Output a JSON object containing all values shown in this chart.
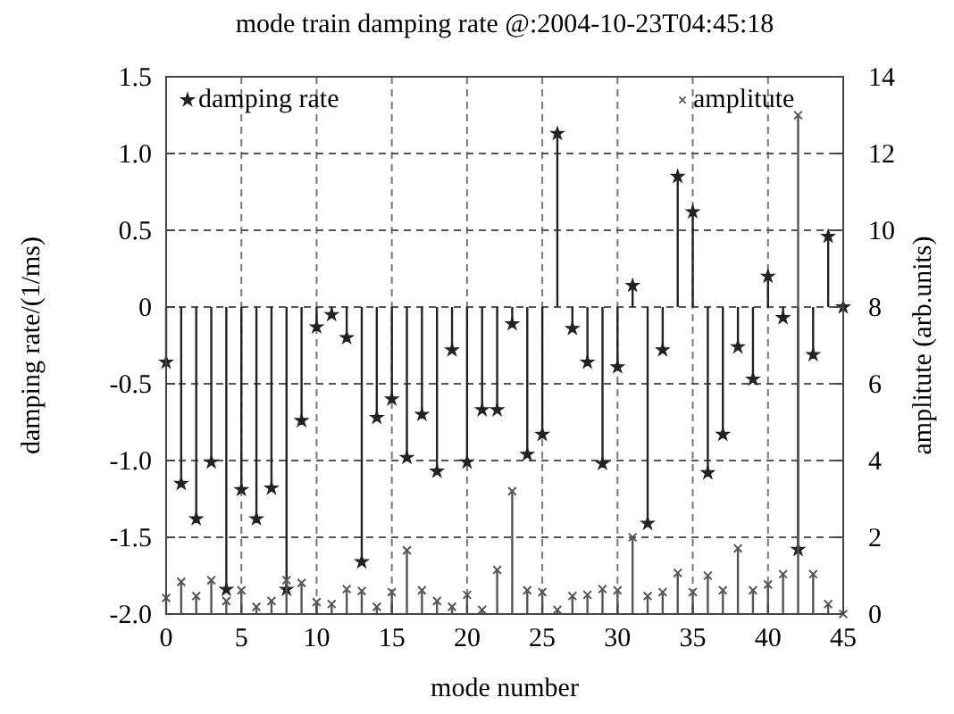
{
  "chart_data": {
    "type": "lollipop",
    "title": "mode train damping rate @:2004-10-23T04:45:18",
    "xlabel": "mode number",
    "ylabel": "damping rate/(1/ms)",
    "y2label": "amplitute (arb.units)",
    "x": [
      0,
      1,
      2,
      3,
      4,
      5,
      6,
      7,
      8,
      9,
      10,
      11,
      12,
      13,
      14,
      15,
      16,
      17,
      18,
      19,
      20,
      21,
      22,
      23,
      24,
      25,
      26,
      27,
      28,
      29,
      30,
      31,
      32,
      33,
      34,
      35,
      36,
      37,
      38,
      39,
      40,
      41,
      42,
      43,
      44,
      45
    ],
    "series": [
      {
        "name": "damping rate",
        "color": "#222222",
        "marker": "star",
        "values": [
          -0.36,
          -1.15,
          -1.38,
          -1.01,
          -1.84,
          -1.19,
          -1.38,
          -1.18,
          -1.84,
          -0.74,
          -0.13,
          -0.05,
          -0.2,
          -1.66,
          -0.72,
          -0.6,
          -0.98,
          -0.7,
          -1.07,
          -0.28,
          -1.01,
          -0.67,
          -0.67,
          -0.11,
          -0.96,
          -0.83,
          1.13,
          -0.14,
          -0.36,
          -1.02,
          -0.39,
          0.14,
          -1.41,
          -0.28,
          0.85,
          0.62,
          -1.08,
          -0.83,
          -0.26,
          -0.47,
          0.2,
          -0.07,
          -1.58,
          -0.31,
          0.46,
          0
        ]
      },
      {
        "name": "amplitute",
        "color": "#555555",
        "marker": "cross",
        "axis": "y2",
        "values": [
          0.42,
          0.84,
          0.47,
          0.88,
          0.34,
          0.62,
          0.19,
          0.34,
          0.88,
          0.81,
          0.31,
          0.26,
          0.65,
          0.6,
          0.19,
          0.57,
          1.66,
          0.62,
          0.34,
          0.19,
          0.5,
          0.11,
          1.15,
          3.2,
          0.62,
          0.57,
          0.11,
          0.47,
          0.5,
          0.65,
          0.62,
          2.0,
          0.47,
          0.57,
          1.07,
          0.57,
          1.0,
          0.62,
          1.71,
          0.62,
          0.77,
          1.04,
          13,
          1.04,
          0.26,
          0
        ]
      }
    ],
    "xlim": [
      0,
      45
    ],
    "xticks": [
      0,
      5,
      10,
      15,
      20,
      25,
      30,
      35,
      40,
      45
    ],
    "ylim": [
      -2,
      1.5
    ],
    "yticks": [
      {
        "value": -2,
        "label": "-2.0"
      },
      {
        "value": -1.5,
        "label": "-1.5"
      },
      {
        "value": -1,
        "label": "-1.0"
      },
      -0.5,
      0,
      0.5,
      {
        "value": 1,
        "label": "1.0"
      },
      1.5
    ],
    "y2lim": [
      0,
      14
    ],
    "y2ticks": [
      0,
      2,
      4,
      6,
      8,
      10,
      12,
      14
    ],
    "grid": true,
    "line_style": "dashed",
    "legend": "top"
  }
}
